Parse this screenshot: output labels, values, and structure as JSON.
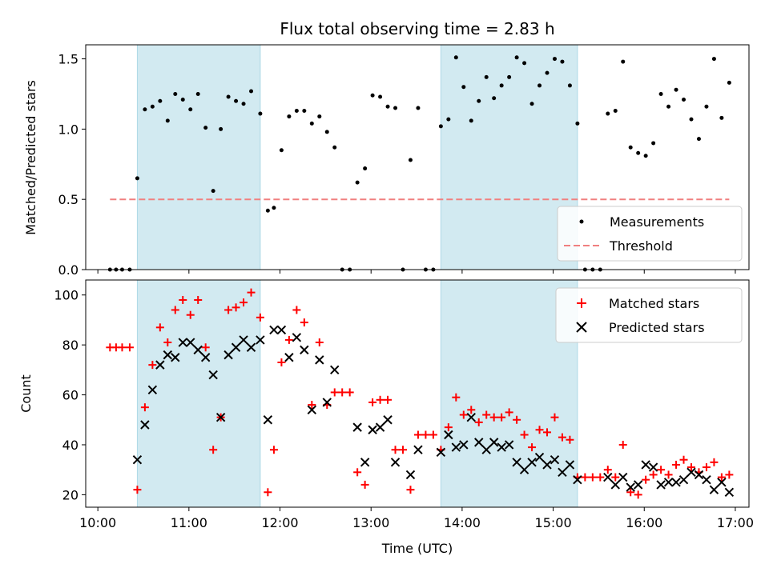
{
  "title": "Flux total observing time = 2.83 h",
  "colors": {
    "measurement": "#000000",
    "threshold": "#f08080",
    "matched": "#ff0000",
    "predicted": "#000000",
    "shade": "#add8e6"
  },
  "chart_data": [
    {
      "type": "scatter",
      "ylabel": "Matched/Predicted stars",
      "xlim": [
        "09:52",
        "17:09"
      ],
      "ylim": [
        0,
        1.6
      ],
      "yticks": [
        0,
        0.5,
        1.0,
        1.5
      ],
      "ytick_labels": [
        "0.0",
        "0.5",
        "1.0",
        "1.5"
      ],
      "legend": {
        "position": "lower-right",
        "entries": [
          "Measurements",
          "Threshold"
        ]
      },
      "shaded_regions": [
        [
          "10:26",
          "11:47"
        ],
        [
          "13:46",
          "15:16"
        ]
      ],
      "threshold": {
        "name": "Threshold",
        "y": 0.5,
        "x_range": [
          "10:08",
          "16:56"
        ]
      },
      "series": [
        {
          "name": "Measurements",
          "points": [
            [
              "10:08",
              0
            ],
            [
              "10:12",
              0
            ],
            [
              "10:16",
              0
            ],
            [
              "10:21",
              0
            ],
            [
              "10:26",
              0.65
            ],
            [
              "10:31",
              1.14
            ],
            [
              "10:36",
              1.16
            ],
            [
              "10:41",
              1.2
            ],
            [
              "10:46",
              1.06
            ],
            [
              "10:51",
              1.25
            ],
            [
              "10:56",
              1.21
            ],
            [
              "11:01",
              1.14
            ],
            [
              "11:06",
              1.25
            ],
            [
              "11:11",
              1.01
            ],
            [
              "11:16",
              0.56
            ],
            [
              "11:21",
              1.0
            ],
            [
              "11:26",
              1.23
            ],
            [
              "11:31",
              1.2
            ],
            [
              "11:36",
              1.18
            ],
            [
              "11:41",
              1.27
            ],
            [
              "11:47",
              1.11
            ],
            [
              "11:52",
              0.42
            ],
            [
              "11:56",
              0.44
            ],
            [
              "12:01",
              0.85
            ],
            [
              "12:06",
              1.09
            ],
            [
              "12:11",
              1.13
            ],
            [
              "12:16",
              1.13
            ],
            [
              "12:21",
              1.04
            ],
            [
              "12:26",
              1.09
            ],
            [
              "12:31",
              0.98
            ],
            [
              "12:36",
              0.87
            ],
            [
              "12:41",
              0
            ],
            [
              "12:46",
              0
            ],
            [
              "12:51",
              0.62
            ],
            [
              "12:56",
              0.72
            ],
            [
              "13:01",
              1.24
            ],
            [
              "13:06",
              1.23
            ],
            [
              "13:11",
              1.16
            ],
            [
              "13:16",
              1.15
            ],
            [
              "13:21",
              0
            ],
            [
              "13:26",
              0.78
            ],
            [
              "13:31",
              1.15
            ],
            [
              "13:36",
              0
            ],
            [
              "13:41",
              0
            ],
            [
              "13:46",
              1.02
            ],
            [
              "13:51",
              1.07
            ],
            [
              "13:56",
              1.51
            ],
            [
              "14:01",
              1.3
            ],
            [
              "14:06",
              1.06
            ],
            [
              "14:11",
              1.2
            ],
            [
              "14:16",
              1.37
            ],
            [
              "14:21",
              1.22
            ],
            [
              "14:26",
              1.31
            ],
            [
              "14:31",
              1.37
            ],
            [
              "14:36",
              1.51
            ],
            [
              "14:41",
              1.47
            ],
            [
              "14:46",
              1.18
            ],
            [
              "14:51",
              1.31
            ],
            [
              "14:56",
              1.4
            ],
            [
              "15:01",
              1.5
            ],
            [
              "15:06",
              1.48
            ],
            [
              "15:11",
              1.31
            ],
            [
              "15:16",
              1.04
            ],
            [
              "15:21",
              0
            ],
            [
              "15:26",
              0
            ],
            [
              "15:31",
              0
            ],
            [
              "15:36",
              1.11
            ],
            [
              "15:41",
              1.13
            ],
            [
              "15:46",
              1.48
            ],
            [
              "15:51",
              0.87
            ],
            [
              "15:56",
              0.83
            ],
            [
              "16:01",
              0.81
            ],
            [
              "16:06",
              0.9
            ],
            [
              "16:11",
              1.25
            ],
            [
              "16:16",
              1.16
            ],
            [
              "16:21",
              1.28
            ],
            [
              "16:26",
              1.21
            ],
            [
              "16:31",
              1.07
            ],
            [
              "16:36",
              0.93
            ],
            [
              "16:41",
              1.16
            ],
            [
              "16:46",
              1.5
            ],
            [
              "16:51",
              1.08
            ],
            [
              "16:56",
              1.33
            ]
          ]
        }
      ]
    },
    {
      "type": "scatter",
      "xlabel": "Time (UTC)",
      "ylabel": "Count",
      "xlim": [
        "09:52",
        "17:09"
      ],
      "ylim": [
        15,
        106
      ],
      "xticks": [
        "10:00",
        "11:00",
        "12:00",
        "13:00",
        "14:00",
        "15:00",
        "16:00",
        "17:00"
      ],
      "yticks": [
        20,
        40,
        60,
        80,
        100
      ],
      "legend": {
        "position": "top-right",
        "entries": [
          "Matched stars",
          "Predicted stars"
        ]
      },
      "shaded_regions": [
        [
          "10:26",
          "11:47"
        ],
        [
          "13:46",
          "15:16"
        ]
      ],
      "series": [
        {
          "name": "Matched stars",
          "marker": "plus",
          "points": [
            [
              "10:08",
              79
            ],
            [
              "10:12",
              79
            ],
            [
              "10:16",
              79
            ],
            [
              "10:21",
              79
            ],
            [
              "10:26",
              22
            ],
            [
              "10:31",
              55
            ],
            [
              "10:36",
              72
            ],
            [
              "10:41",
              87
            ],
            [
              "10:46",
              81
            ],
            [
              "10:51",
              94
            ],
            [
              "10:56",
              98
            ],
            [
              "11:01",
              92
            ],
            [
              "11:06",
              98
            ],
            [
              "11:11",
              79
            ],
            [
              "11:16",
              38
            ],
            [
              "11:21",
              51
            ],
            [
              "11:26",
              94
            ],
            [
              "11:31",
              95
            ],
            [
              "11:36",
              97
            ],
            [
              "11:41",
              101
            ],
            [
              "11:47",
              91
            ],
            [
              "11:52",
              21
            ],
            [
              "11:56",
              38
            ],
            [
              "12:01",
              73
            ],
            [
              "12:06",
              82
            ],
            [
              "12:11",
              94
            ],
            [
              "12:16",
              89
            ],
            [
              "12:21",
              56
            ],
            [
              "12:26",
              81
            ],
            [
              "12:31",
              56
            ],
            [
              "12:36",
              61
            ],
            [
              "12:41",
              61
            ],
            [
              "12:46",
              61
            ],
            [
              "12:51",
              29
            ],
            [
              "12:56",
              24
            ],
            [
              "13:01",
              57
            ],
            [
              "13:06",
              58
            ],
            [
              "13:11",
              58
            ],
            [
              "13:16",
              38
            ],
            [
              "13:21",
              38
            ],
            [
              "13:26",
              22
            ],
            [
              "13:31",
              44
            ],
            [
              "13:36",
              44
            ],
            [
              "13:41",
              44
            ],
            [
              "13:46",
              38
            ],
            [
              "13:51",
              47
            ],
            [
              "13:56",
              59
            ],
            [
              "14:01",
              52
            ],
            [
              "14:06",
              54
            ],
            [
              "14:11",
              49
            ],
            [
              "14:16",
              52
            ],
            [
              "14:21",
              51
            ],
            [
              "14:26",
              51
            ],
            [
              "14:31",
              53
            ],
            [
              "14:36",
              50
            ],
            [
              "14:41",
              44
            ],
            [
              "14:46",
              39
            ],
            [
              "14:51",
              46
            ],
            [
              "14:56",
              45
            ],
            [
              "15:01",
              51
            ],
            [
              "15:06",
              43
            ],
            [
              "15:11",
              42
            ],
            [
              "15:16",
              27
            ],
            [
              "15:21",
              27
            ],
            [
              "15:26",
              27
            ],
            [
              "15:31",
              27
            ],
            [
              "15:36",
              30
            ],
            [
              "15:41",
              27
            ],
            [
              "15:46",
              40
            ],
            [
              "15:51",
              21
            ],
            [
              "15:56",
              20
            ],
            [
              "16:01",
              26
            ],
            [
              "16:06",
              28
            ],
            [
              "16:11",
              30
            ],
            [
              "16:16",
              28
            ],
            [
              "16:21",
              32
            ],
            [
              "16:26",
              34
            ],
            [
              "16:31",
              31
            ],
            [
              "16:36",
              29
            ],
            [
              "16:41",
              31
            ],
            [
              "16:46",
              33
            ],
            [
              "16:51",
              27
            ],
            [
              "16:56",
              28
            ]
          ]
        },
        {
          "name": "Predicted stars",
          "marker": "x",
          "points": [
            [
              "10:26",
              34
            ],
            [
              "10:31",
              48
            ],
            [
              "10:36",
              62
            ],
            [
              "10:41",
              72
            ],
            [
              "10:46",
              76
            ],
            [
              "10:51",
              75
            ],
            [
              "10:56",
              81
            ],
            [
              "11:01",
              81
            ],
            [
              "11:06",
              78
            ],
            [
              "11:11",
              75
            ],
            [
              "11:16",
              68
            ],
            [
              "11:21",
              51
            ],
            [
              "11:26",
              76
            ],
            [
              "11:31",
              79
            ],
            [
              "11:36",
              82
            ],
            [
              "11:41",
              79
            ],
            [
              "11:47",
              82
            ],
            [
              "11:52",
              50
            ],
            [
              "11:56",
              86
            ],
            [
              "12:01",
              86
            ],
            [
              "12:06",
              75
            ],
            [
              "12:11",
              83
            ],
            [
              "12:16",
              78
            ],
            [
              "12:21",
              54
            ],
            [
              "12:26",
              74
            ],
            [
              "12:31",
              57
            ],
            [
              "12:36",
              70
            ],
            [
              "12:51",
              47
            ],
            [
              "12:56",
              33
            ],
            [
              "13:01",
              46
            ],
            [
              "13:06",
              47
            ],
            [
              "13:11",
              50
            ],
            [
              "13:16",
              33
            ],
            [
              "13:26",
              28
            ],
            [
              "13:31",
              38
            ],
            [
              "13:46",
              37
            ],
            [
              "13:51",
              44
            ],
            [
              "13:56",
              39
            ],
            [
              "14:01",
              40
            ],
            [
              "14:06",
              51
            ],
            [
              "14:11",
              41
            ],
            [
              "14:16",
              38
            ],
            [
              "14:21",
              41
            ],
            [
              "14:26",
              39
            ],
            [
              "14:31",
              40
            ],
            [
              "14:36",
              33
            ],
            [
              "14:41",
              30
            ],
            [
              "14:46",
              33
            ],
            [
              "14:51",
              35
            ],
            [
              "14:56",
              32
            ],
            [
              "15:01",
              34
            ],
            [
              "15:06",
              29
            ],
            [
              "15:11",
              32
            ],
            [
              "15:16",
              26
            ],
            [
              "15:36",
              27
            ],
            [
              "15:41",
              24
            ],
            [
              "15:46",
              27
            ],
            [
              "15:51",
              23
            ],
            [
              "15:56",
              24
            ],
            [
              "16:01",
              32
            ],
            [
              "16:06",
              31
            ],
            [
              "16:11",
              24
            ],
            [
              "16:16",
              25
            ],
            [
              "16:21",
              25
            ],
            [
              "16:26",
              26
            ],
            [
              "16:31",
              29
            ],
            [
              "16:36",
              28
            ],
            [
              "16:41",
              26
            ],
            [
              "16:46",
              22
            ],
            [
              "16:51",
              25
            ],
            [
              "16:56",
              21
            ]
          ]
        }
      ]
    }
  ]
}
